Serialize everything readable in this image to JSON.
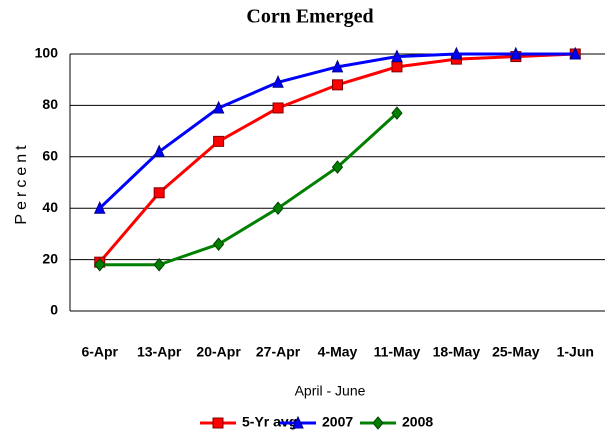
{
  "chart_data": {
    "type": "line",
    "title": "Corn Emerged",
    "xlabel": "April - June",
    "ylabel": "Percent",
    "categories": [
      "6-Apr",
      "13-Apr",
      "20-Apr",
      "27-Apr",
      "4-May",
      "11-May",
      "18-May",
      "25-May",
      "1-Jun"
    ],
    "series": [
      {
        "name": "5-Yr avg",
        "color": "#ff0000",
        "marker": "square",
        "values": [
          19,
          46,
          66,
          79,
          88,
          95,
          98,
          99,
          100
        ]
      },
      {
        "name": "2007",
        "color": "#0000ff",
        "marker": "triangle",
        "values": [
          40,
          62,
          79,
          89,
          95,
          99,
          100,
          100,
          100
        ]
      },
      {
        "name": "2008",
        "color": "#008000",
        "marker": "diamond",
        "values": [
          18,
          18,
          26,
          40,
          56,
          77,
          null,
          null,
          null
        ]
      }
    ],
    "ylim": [
      0,
      100
    ],
    "yticks": [
      0,
      20,
      40,
      60,
      80,
      100
    ],
    "grid": true,
    "legend": "bottom"
  }
}
